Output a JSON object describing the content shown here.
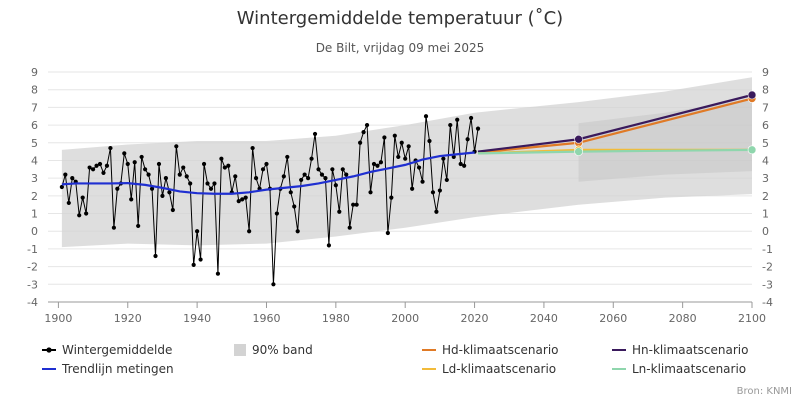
{
  "chart_data": {
    "type": "line",
    "title": "Wintergemiddelde temperatuur (˚C)",
    "subtitle": "De Bilt, vrijdag 09 mei 2025",
    "xlabel": "",
    "ylabel": "",
    "xlim": [
      1897,
      2100
    ],
    "ylim": [
      -4,
      9
    ],
    "x_ticks": [
      1900,
      1920,
      1940,
      1960,
      1980,
      2000,
      2020,
      2040,
      2060,
      2080,
      2100
    ],
    "y_ticks": [
      -4,
      -3,
      -2,
      -1,
      0,
      1,
      2,
      3,
      4,
      5,
      6,
      7,
      8,
      9
    ],
    "grid": "horizontal",
    "legend_position": "bottom",
    "source": "Bron: KNMI",
    "colors": {
      "observations": "#000000",
      "band": "#d3d3d3",
      "trend": "#1f2fd1",
      "Hd": "#e07a26",
      "Hn": "#3a1a5c",
      "Ld": "#f2bb3a",
      "Ln": "#8fd6ad"
    },
    "series": [
      {
        "name": "Wintergemiddelde",
        "x": [
          1901,
          1902,
          1903,
          1904,
          1905,
          1906,
          1907,
          1908,
          1909,
          1910,
          1911,
          1912,
          1913,
          1914,
          1915,
          1916,
          1917,
          1918,
          1919,
          1920,
          1921,
          1922,
          1923,
          1924,
          1925,
          1926,
          1927,
          1928,
          1929,
          1930,
          1931,
          1932,
          1933,
          1934,
          1935,
          1936,
          1937,
          1938,
          1939,
          1940,
          1941,
          1942,
          1943,
          1944,
          1945,
          1946,
          1947,
          1948,
          1949,
          1950,
          1951,
          1952,
          1953,
          1954,
          1955,
          1956,
          1957,
          1958,
          1959,
          1960,
          1961,
          1962,
          1963,
          1964,
          1965,
          1966,
          1967,
          1968,
          1969,
          1970,
          1971,
          1972,
          1973,
          1974,
          1975,
          1976,
          1977,
          1978,
          1979,
          1980,
          1981,
          1982,
          1983,
          1984,
          1985,
          1986,
          1987,
          1988,
          1989,
          1990,
          1991,
          1992,
          1993,
          1994,
          1995,
          1996,
          1997,
          1998,
          1999,
          2000,
          2001,
          2002,
          2003,
          2004,
          2005,
          2006,
          2007,
          2008,
          2009,
          2010,
          2011,
          2012,
          2013,
          2014,
          2015,
          2016,
          2017,
          2018,
          2019,
          2020,
          2021
        ],
        "values": [
          2.5,
          3.2,
          1.6,
          3.0,
          2.8,
          0.9,
          1.9,
          1.0,
          3.6,
          3.5,
          3.7,
          3.8,
          3.3,
          3.7,
          4.7,
          0.2,
          2.4,
          2.7,
          4.4,
          3.8,
          1.8,
          3.9,
          0.3,
          4.2,
          3.5,
          3.2,
          2.4,
          -1.4,
          3.8,
          2.0,
          3.0,
          2.2,
          1.2,
          4.8,
          3.2,
          3.6,
          3.1,
          2.7,
          -1.9,
          0.0,
          -1.6,
          3.8,
          2.7,
          2.4,
          2.7,
          -2.4,
          4.1,
          3.6,
          3.7,
          2.2,
          3.1,
          1.7,
          1.8,
          1.9,
          0.0,
          4.7,
          3.0,
          2.4,
          3.5,
          3.8,
          2.4,
          -3.0,
          1.0,
          2.4,
          3.1,
          4.2,
          2.2,
          1.4,
          0.0,
          2.9,
          3.2,
          3.0,
          4.1,
          5.5,
          3.5,
          3.2,
          3.0,
          -0.8,
          3.5,
          2.6,
          1.1,
          3.5,
          3.2,
          0.2,
          1.5,
          1.5,
          5.0,
          5.6,
          6.0,
          2.2,
          3.8,
          3.7,
          3.9,
          5.3,
          -0.1,
          1.9,
          5.4,
          4.2,
          5.0,
          4.1,
          4.8,
          2.4,
          4.0,
          3.6,
          2.8,
          6.5,
          5.1,
          2.2,
          1.1,
          2.3,
          4.1,
          2.9,
          6.0,
          4.2,
          6.3,
          3.8,
          3.7,
          5.2,
          6.4,
          4.5,
          5.8
        ]
      },
      {
        "name": "Trendlijn metingen",
        "x": [
          1901,
          1905,
          1910,
          1915,
          1920,
          1925,
          1930,
          1935,
          1940,
          1945,
          1950,
          1955,
          1960,
          1965,
          1970,
          1975,
          1980,
          1985,
          1990,
          1995,
          2000,
          2005,
          2010,
          2015,
          2020
        ],
        "values": [
          2.65,
          2.7,
          2.7,
          2.7,
          2.72,
          2.62,
          2.45,
          2.25,
          2.15,
          2.12,
          2.12,
          2.2,
          2.35,
          2.45,
          2.55,
          2.7,
          2.9,
          3.1,
          3.35,
          3.55,
          3.75,
          4.05,
          4.25,
          4.35,
          4.45
        ]
      },
      {
        "name": "90% band",
        "x": [
          1901,
          1920,
          1940,
          1960,
          1980,
          2000,
          2020,
          2050,
          2075,
          2100
        ],
        "low": [
          -0.9,
          -0.7,
          -0.8,
          -0.7,
          -0.3,
          0.2,
          0.8,
          1.5,
          1.9,
          2.1
        ],
        "high": [
          4.6,
          4.9,
          5.1,
          5.1,
          5.4,
          6.0,
          6.7,
          7.3,
          7.9,
          8.7
        ]
      },
      {
        "name": "Hd-klimaatscenario",
        "x": [
          2021,
          2050,
          2100
        ],
        "values": [
          4.45,
          5.0,
          7.5
        ]
      },
      {
        "name": "Hn-klimaatscenario",
        "x": [
          2021,
          2050,
          2100
        ],
        "values": [
          4.5,
          5.2,
          7.7
        ]
      },
      {
        "name": "Ld-klimaatscenario",
        "x": [
          2021,
          2050,
          2100
        ],
        "values": [
          4.4,
          4.6,
          4.6
        ]
      },
      {
        "name": "Ln-klimaatscenario",
        "x": [
          2021,
          2050,
          2100
        ],
        "values": [
          4.4,
          4.5,
          4.6
        ]
      }
    ],
    "legend": [
      {
        "label": "Wintergemiddelde",
        "key": "observations",
        "symbol": "line-dot"
      },
      {
        "label": "90% band",
        "key": "band",
        "symbol": "square"
      },
      {
        "label": "Hd-klimaatscenario",
        "key": "Hd",
        "symbol": "line"
      },
      {
        "label": "Hn-klimaatscenario",
        "key": "Hn",
        "symbol": "line"
      },
      {
        "label": "Trendlijn metingen",
        "key": "trend",
        "symbol": "line"
      },
      {
        "label": "Ld-klimaatscenario",
        "key": "Ld",
        "symbol": "line"
      },
      {
        "label": "Ln-klimaatscenario",
        "key": "Ln",
        "symbol": "line"
      }
    ]
  }
}
